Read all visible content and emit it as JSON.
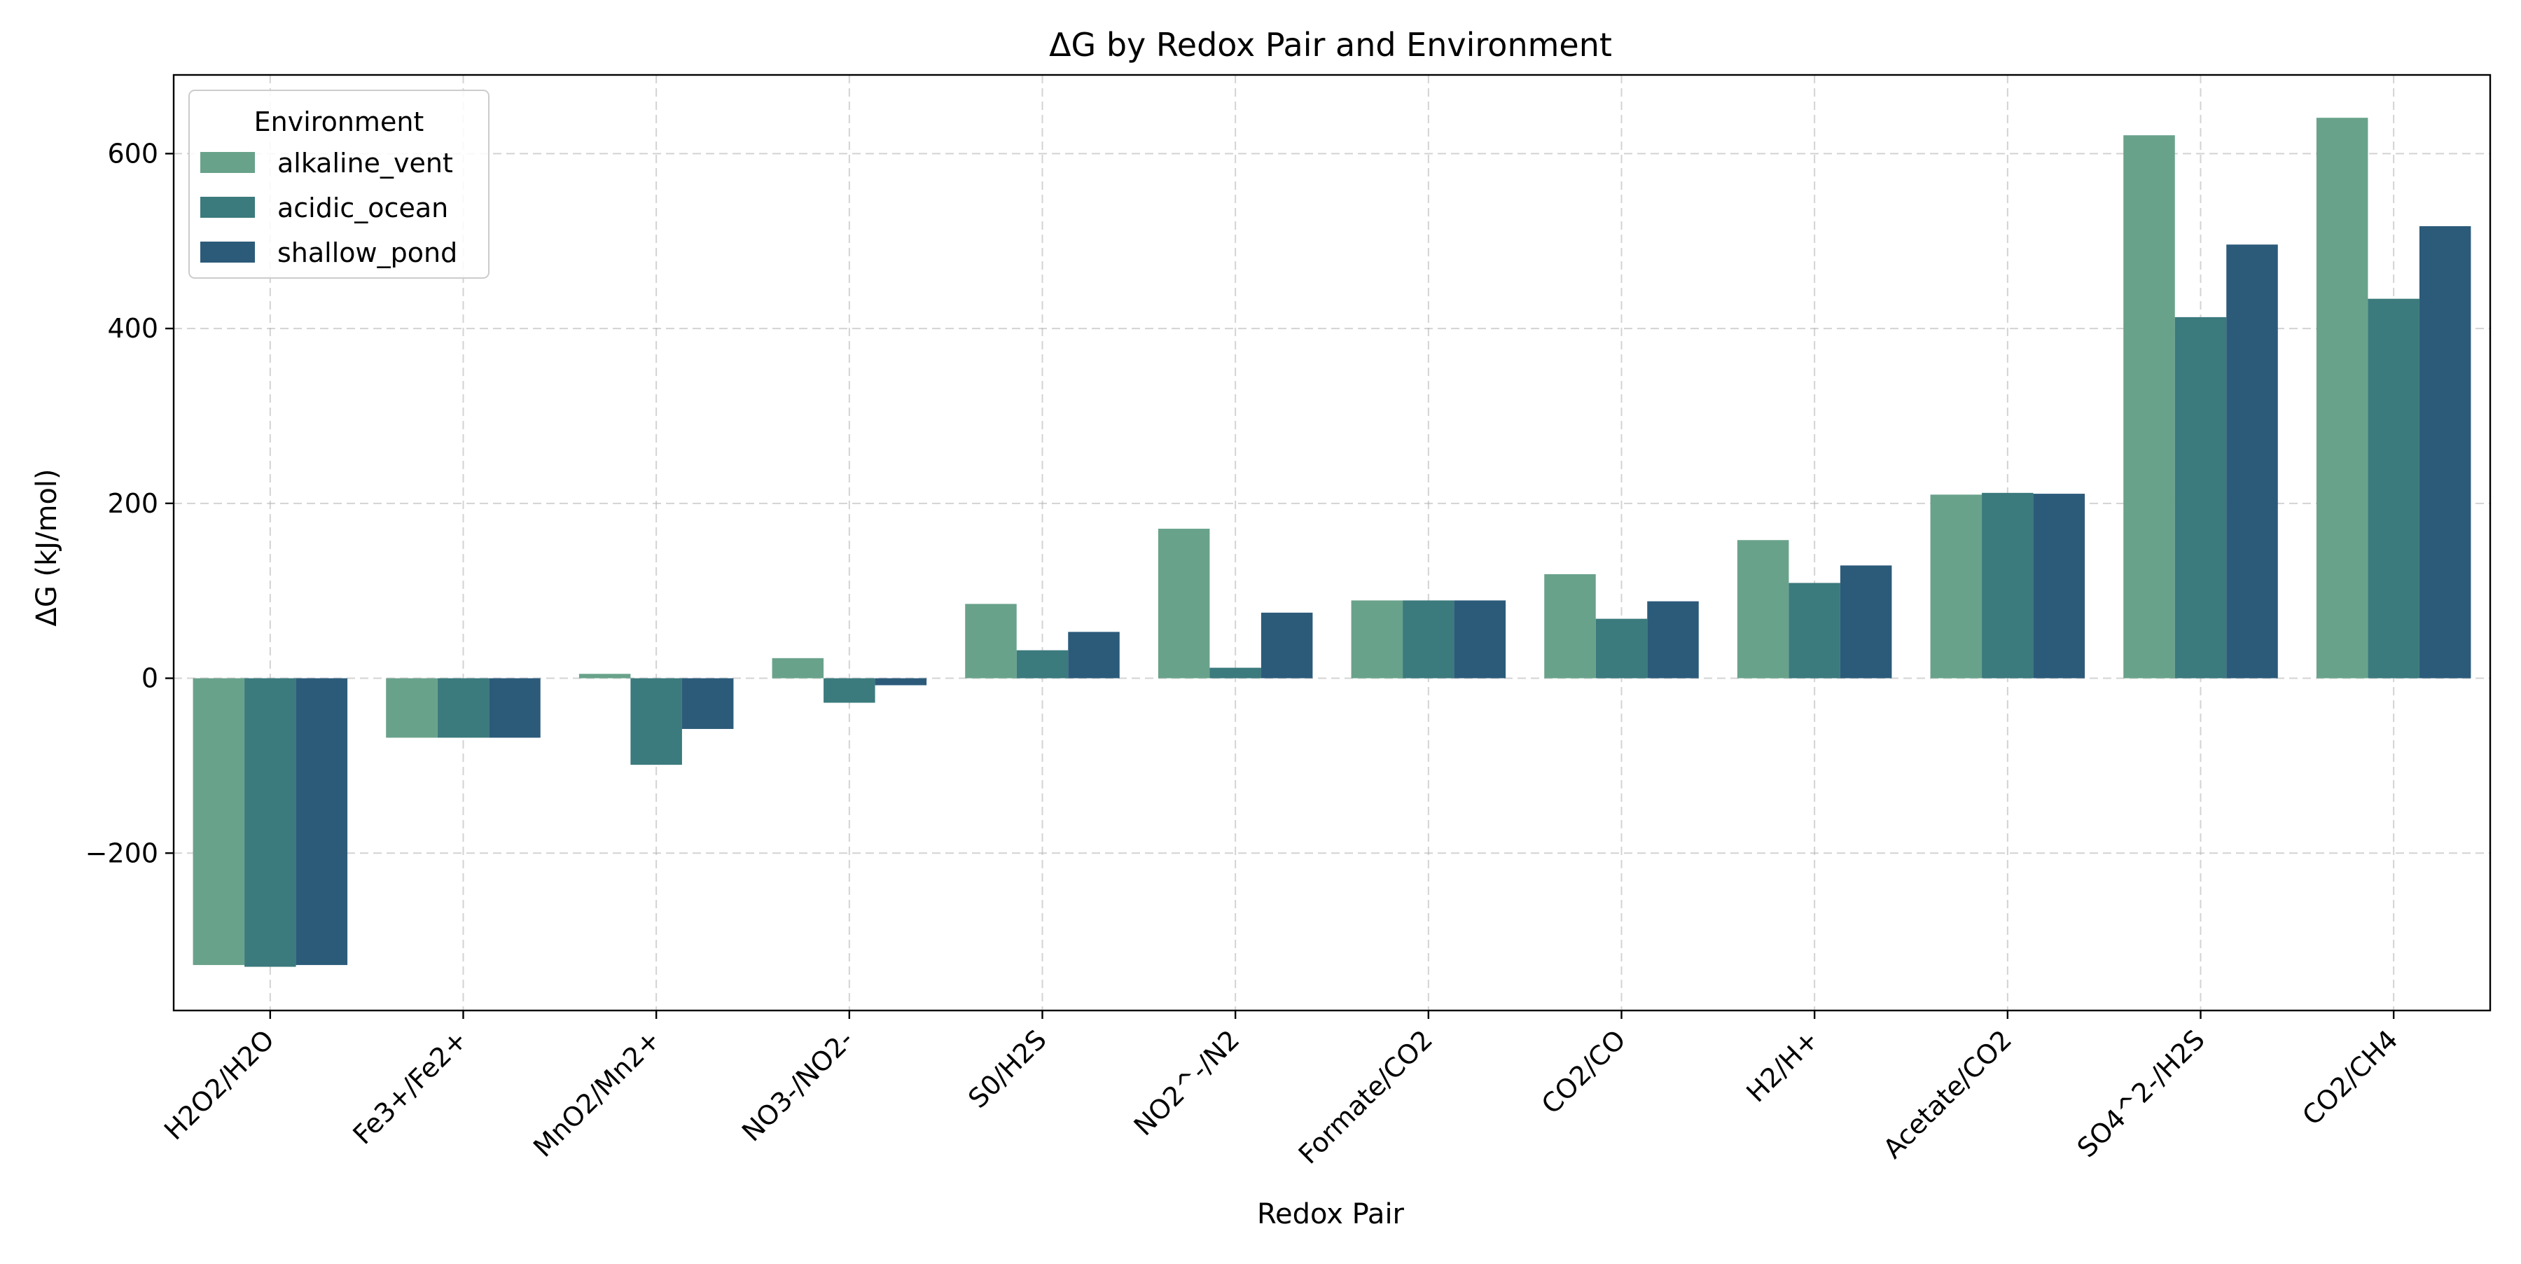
{
  "chart_data": {
    "type": "bar",
    "title": "ΔG by Redox Pair and Environment",
    "xlabel": "Redox Pair",
    "ylabel": "ΔG (kJ/mol)",
    "ylim": [
      -380,
      690
    ],
    "yticks": [
      -200,
      0,
      200,
      400,
      600
    ],
    "ytick_labels": [
      "−200",
      "0",
      "200",
      "400",
      "600"
    ],
    "grid": true,
    "legend": {
      "title": "Environment",
      "placement": "top-left"
    },
    "categories": [
      "H2O2/H2O",
      "Fe3+/Fe2+",
      "MnO2/Mn2+",
      "NO3-/NO2-",
      "S0/H2S",
      "NO2^-/N2",
      "Formate/CO2",
      "CO2/CO",
      "H2/H+",
      "Acetate/CO2",
      "SO4^2-/H2S",
      "CO2/CH4"
    ],
    "series": [
      {
        "name": "alkaline_vent",
        "color": "#69a28b",
        "values": [
          -328,
          -68,
          5,
          23,
          85,
          171,
          89,
          119,
          158,
          210,
          621,
          641
        ]
      },
      {
        "name": "acidic_ocean",
        "color": "#3b7a7d",
        "values": [
          -330,
          -68,
          -99,
          -28,
          32,
          12,
          89,
          68,
          109,
          212,
          413,
          434
        ]
      },
      {
        "name": "shallow_pond",
        "color": "#2c5b7a",
        "values": [
          -328,
          -68,
          -58,
          -8,
          53,
          75,
          89,
          88,
          129,
          211,
          496,
          517
        ]
      }
    ]
  }
}
